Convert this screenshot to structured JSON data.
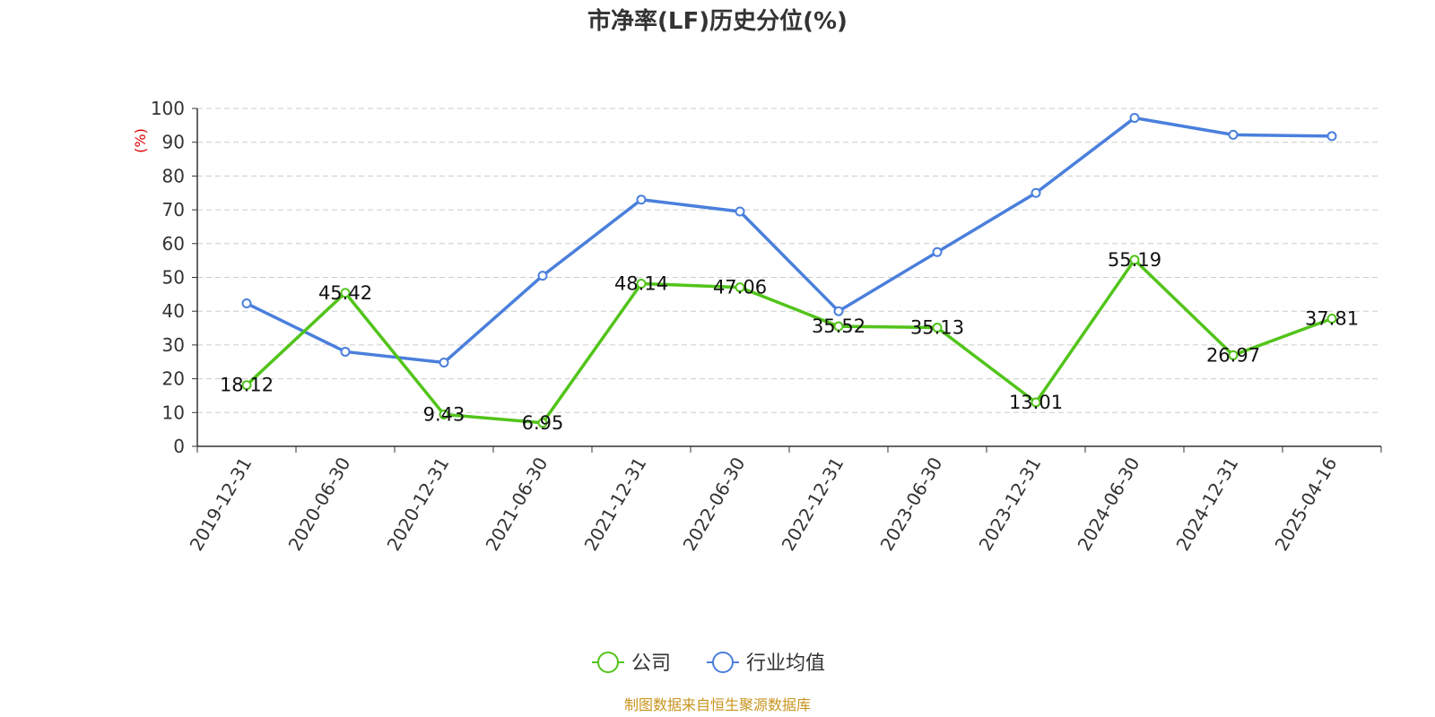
{
  "chart_data": {
    "type": "line",
    "title": "市净率(LF)历史分位(%)",
    "ylabel": "(%)",
    "ylim": [
      0,
      100
    ],
    "yticks": [
      0,
      10,
      20,
      30,
      40,
      50,
      60,
      70,
      80,
      90,
      100
    ],
    "grid": true,
    "legend_position": "bottom",
    "categories": [
      "2019-12-31",
      "2020-06-30",
      "2020-12-31",
      "2021-06-30",
      "2021-12-31",
      "2022-06-30",
      "2022-12-31",
      "2023-06-30",
      "2023-12-31",
      "2024-06-30",
      "2024-12-31",
      "2025-04-16"
    ],
    "series": [
      {
        "name": "公司",
        "color": "#52c41a",
        "values": [
          18.12,
          45.42,
          9.43,
          6.95,
          48.14,
          47.06,
          35.52,
          35.13,
          13.01,
          55.19,
          26.97,
          37.81
        ],
        "labels": [
          "18.12",
          "45.42",
          "9.43",
          "6.95",
          "48.14",
          "47.06",
          "35.52",
          "35.13",
          "13.01",
          "55.19",
          "26.97",
          "37.81"
        ]
      },
      {
        "name": "行业均值",
        "color": "#4a7fdc",
        "values": [
          42.3,
          28.0,
          24.8,
          50.5,
          73.0,
          69.5,
          40.0,
          57.5,
          75.0,
          97.2,
          92.2,
          91.8
        ]
      }
    ],
    "source": "制图数据来自恒生聚源数据库"
  }
}
